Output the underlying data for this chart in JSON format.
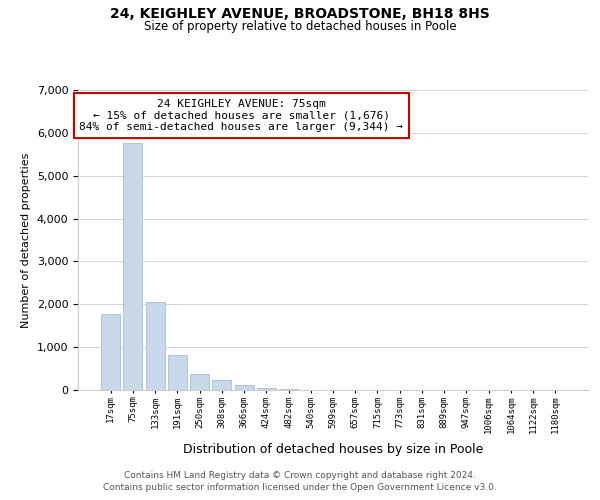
{
  "title": "24, KEIGHLEY AVENUE, BROADSTONE, BH18 8HS",
  "subtitle": "Size of property relative to detached houses in Poole",
  "xlabel": "Distribution of detached houses by size in Poole",
  "ylabel": "Number of detached properties",
  "bar_color": "#c8d8eb",
  "bar_edge_color": "#aabdd0",
  "annotation_box_color": "#ffffff",
  "annotation_box_edge": "#cc0000",
  "annotation_line1": "24 KEIGHLEY AVENUE: 75sqm",
  "annotation_line2": "← 15% of detached houses are smaller (1,676)",
  "annotation_line3": "84% of semi-detached houses are larger (9,344) →",
  "categories": [
    "17sqm",
    "75sqm",
    "133sqm",
    "191sqm",
    "250sqm",
    "308sqm",
    "366sqm",
    "424sqm",
    "482sqm",
    "540sqm",
    "599sqm",
    "657sqm",
    "715sqm",
    "773sqm",
    "831sqm",
    "889sqm",
    "947sqm",
    "1006sqm",
    "1064sqm",
    "1122sqm",
    "1180sqm"
  ],
  "values": [
    1780,
    5770,
    2060,
    820,
    370,
    230,
    110,
    55,
    25,
    10,
    5,
    2,
    1,
    0,
    0,
    0,
    0,
    0,
    0,
    0,
    0
  ],
  "ylim": [
    0,
    7000
  ],
  "yticks": [
    0,
    1000,
    2000,
    3000,
    4000,
    5000,
    6000,
    7000
  ],
  "property_bin_index": 1,
  "footer_line1": "Contains HM Land Registry data © Crown copyright and database right 2024.",
  "footer_line2": "Contains public sector information licensed under the Open Government Licence v3.0."
}
